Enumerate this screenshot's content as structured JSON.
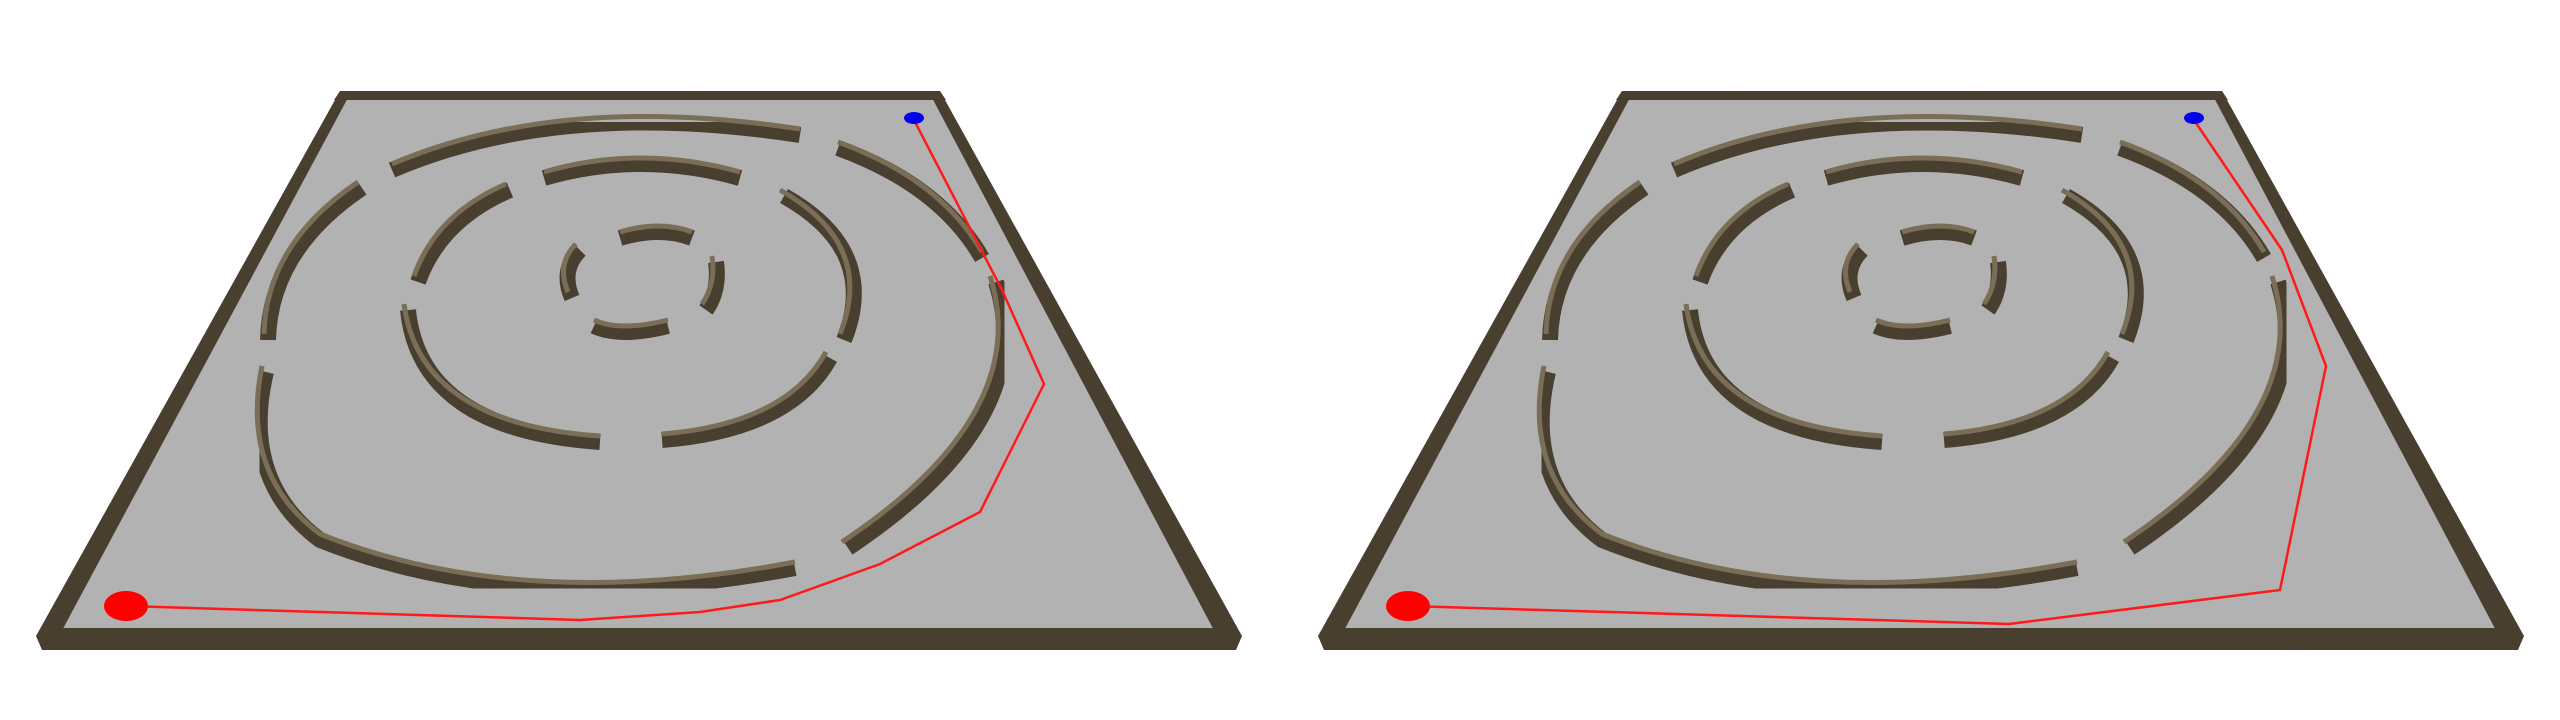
{
  "colors": {
    "background": "#ffffff",
    "floor": "#b2b2b2",
    "wall_top": "#6b604c",
    "wall_side": "#4c4232",
    "wall_edge": "#3a3226",
    "path": "#ff1a1a",
    "start_marker": "#ff0000",
    "goal_marker": "#0000ee"
  },
  "scenes": [
    {
      "name": "maze-scene-left",
      "path_name": "planned-path-left"
    },
    {
      "name": "maze-scene-right",
      "path_name": "planned-path-right"
    }
  ]
}
